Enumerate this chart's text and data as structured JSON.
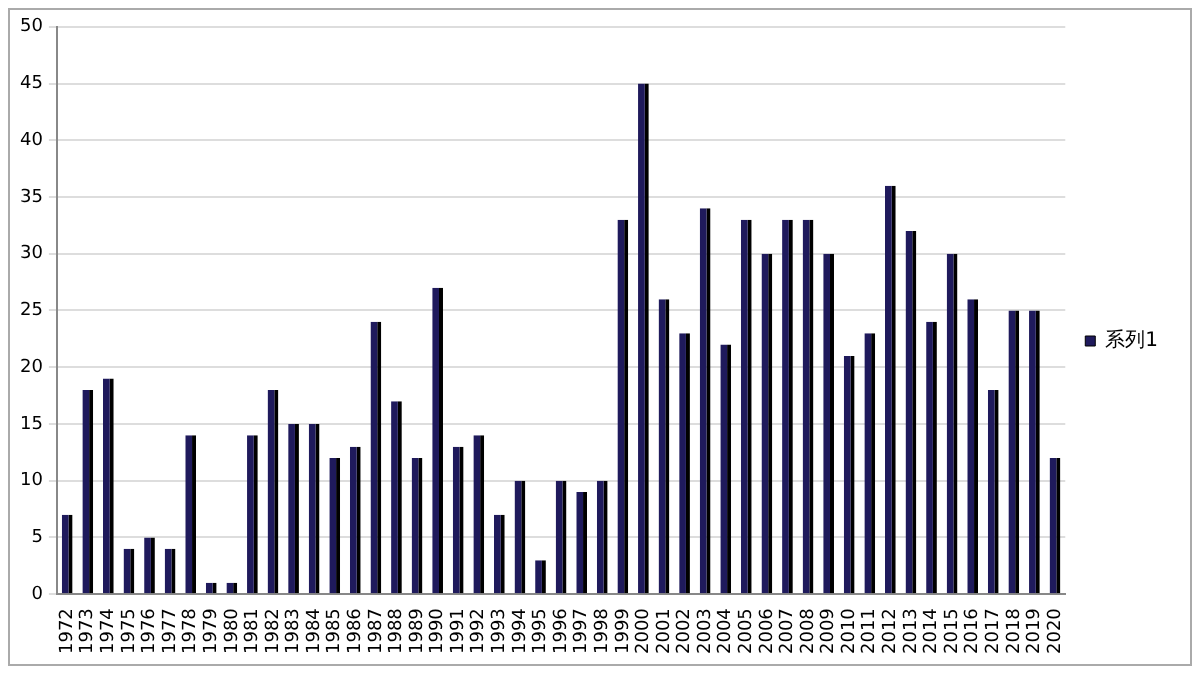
{
  "chart_data": {
    "type": "bar",
    "categories": [
      "1972",
      "1973",
      "1974",
      "1975",
      "1976",
      "1977",
      "1978",
      "1979",
      "1980",
      "1981",
      "1982",
      "1983",
      "1984",
      "1985",
      "1986",
      "1987",
      "1988",
      "1989",
      "1990",
      "1991",
      "1992",
      "1993",
      "1994",
      "1995",
      "1996",
      "1997",
      "1998",
      "1999",
      "2000",
      "2001",
      "2002",
      "2003",
      "2004",
      "2005",
      "2006",
      "2007",
      "2008",
      "2009",
      "2010",
      "2011",
      "2012",
      "2013",
      "2014",
      "2015",
      "2016",
      "2017",
      "2018",
      "2019",
      "2020"
    ],
    "series": [
      {
        "name": "系列1",
        "color": "#1f1a5c",
        "values": [
          7,
          18,
          19,
          4,
          5,
          4,
          14,
          1,
          1,
          14,
          18,
          15,
          15,
          12,
          13,
          24,
          17,
          12,
          27,
          13,
          14,
          7,
          10,
          3,
          10,
          9,
          10,
          33,
          45,
          26,
          23,
          34,
          22,
          33,
          30,
          33,
          33,
          30,
          21,
          23,
          36,
          32,
          24,
          30,
          26,
          18,
          25,
          25,
          12
        ]
      }
    ],
    "ylim": [
      0,
      50
    ],
    "yticks": [
      0,
      5,
      10,
      15,
      20,
      25,
      30,
      35,
      40,
      45,
      50
    ],
    "grid": "y",
    "legend": "right"
  }
}
